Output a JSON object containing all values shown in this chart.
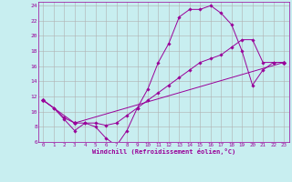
{
  "xlabel": "Windchill (Refroidissement éolien,°C)",
  "bg_color": "#c8eef0",
  "line_color": "#990099",
  "grid_color": "#b0b0b0",
  "xlim": [
    -0.5,
    23.5
  ],
  "ylim": [
    6,
    24.5
  ],
  "yticks": [
    6,
    8,
    10,
    12,
    14,
    16,
    18,
    20,
    22,
    24
  ],
  "xticks": [
    0,
    1,
    2,
    3,
    4,
    5,
    6,
    7,
    8,
    9,
    10,
    11,
    12,
    13,
    14,
    15,
    16,
    17,
    18,
    19,
    20,
    21,
    22,
    23
  ],
  "line1_x": [
    0,
    1,
    2,
    3,
    4,
    5,
    6,
    7,
    8,
    9,
    10,
    11,
    12,
    13,
    14,
    15,
    16,
    17,
    18,
    19,
    20,
    21,
    22,
    23
  ],
  "line1_y": [
    11.5,
    10.5,
    9.0,
    7.5,
    8.5,
    8.0,
    6.5,
    5.5,
    7.5,
    10.5,
    13.0,
    16.5,
    19.0,
    22.5,
    23.5,
    23.5,
    24.0,
    23.0,
    21.5,
    18.0,
    13.5,
    15.5,
    16.5,
    16.5
  ],
  "line2_x": [
    0,
    1,
    2,
    3,
    4,
    5,
    6,
    7,
    8,
    9,
    10,
    11,
    12,
    13,
    14,
    15,
    16,
    17,
    18,
    19,
    20,
    21,
    22,
    23
  ],
  "line2_y": [
    11.5,
    10.5,
    9.2,
    8.5,
    8.5,
    8.5,
    8.2,
    8.5,
    9.5,
    10.5,
    11.5,
    12.5,
    13.5,
    14.5,
    15.5,
    16.5,
    17.0,
    17.5,
    18.5,
    19.5,
    19.5,
    16.5,
    16.5,
    16.5
  ],
  "line3_x": [
    0,
    3,
    23
  ],
  "line3_y": [
    11.5,
    8.5,
    16.5
  ]
}
